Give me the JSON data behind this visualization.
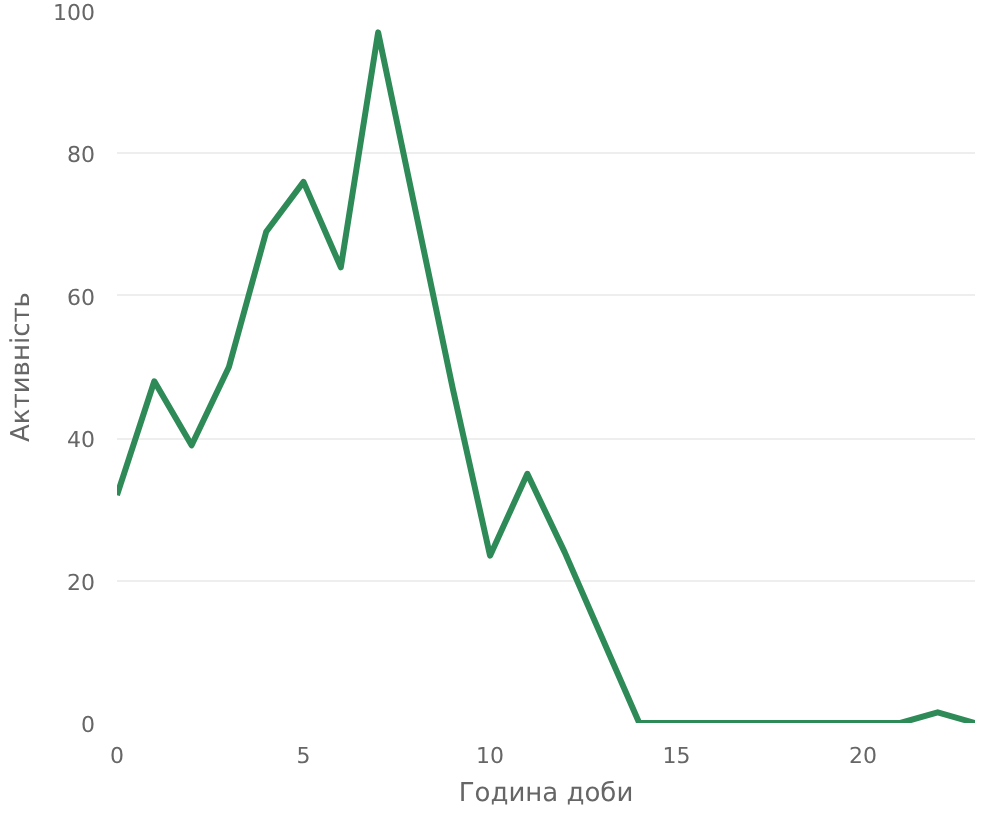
{
  "chart_data": {
    "type": "line",
    "xlabel": "Година доби",
    "ylabel": "Активність",
    "x": [
      0,
      1,
      2,
      3,
      4,
      5,
      6,
      7,
      8,
      9,
      10,
      11,
      12,
      13,
      14,
      15,
      16,
      17,
      18,
      19,
      20,
      21,
      22,
      23
    ],
    "series": [
      {
        "color": "#2e8b57",
        "values": [
          32,
          48,
          39,
          50,
          69,
          76,
          64,
          97,
          72,
          47,
          23.5,
          35,
          24,
          12,
          0,
          0,
          0,
          0,
          0,
          0,
          0,
          0,
          1.5,
          0
        ]
      }
    ],
    "xlim": [
      0,
      23
    ],
    "ylim": [
      0,
      100
    ],
    "xticks": [
      0,
      5,
      10,
      15,
      20
    ],
    "yticks": [
      0,
      20,
      40,
      60,
      80,
      100
    ],
    "grid": "y",
    "marker": "none",
    "line_style": "solid"
  }
}
